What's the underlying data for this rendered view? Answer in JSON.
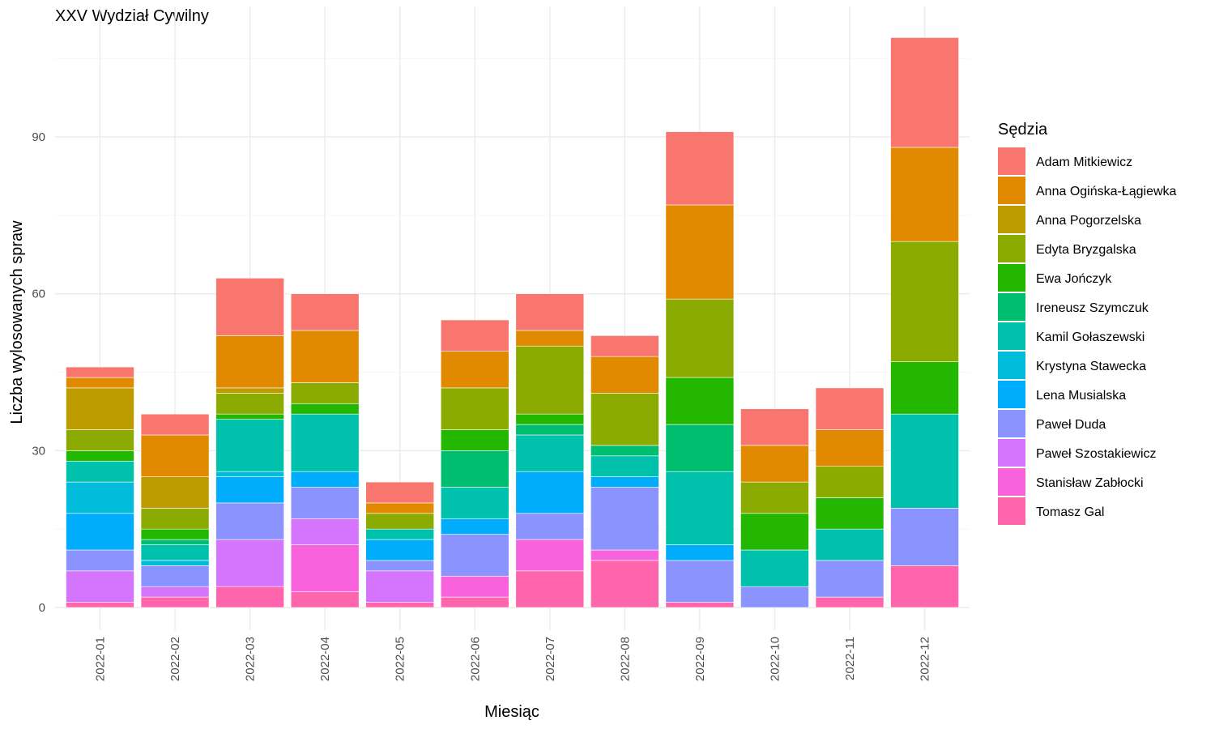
{
  "chart_data": {
    "type": "bar",
    "stacked": true,
    "title": "XXV Wydział Cywilny",
    "xlabel": "Miesiąc",
    "ylabel": "Liczba wylosowanych spraw",
    "ylim": [
      0,
      112
    ],
    "yticks": [
      0,
      30,
      60,
      90
    ],
    "grid": true,
    "legend_title": "Sędzia",
    "legend_position": "right",
    "categories": [
      "2022-01",
      "2022-02",
      "2022-03",
      "2022-04",
      "2022-05",
      "2022-06",
      "2022-07",
      "2022-08",
      "2022-09",
      "2022-10",
      "2022-11",
      "2022-12"
    ],
    "series": [
      {
        "name": "Adam Mitkiewicz",
        "color": "#F8766D",
        "values": [
          2,
          4,
          11,
          7,
          4,
          6,
          7,
          4,
          14,
          7,
          8,
          21
        ]
      },
      {
        "name": "Anna Ogińska-Łągiewka",
        "color": "#E18A00",
        "values": [
          2,
          8,
          10,
          10,
          2,
          7,
          3,
          7,
          18,
          7,
          7,
          18
        ]
      },
      {
        "name": "Anna Pogorzelska",
        "color": "#BE9C00",
        "values": [
          8,
          6,
          1,
          0,
          0,
          0,
          0,
          0,
          0,
          0,
          0,
          0
        ]
      },
      {
        "name": "Edyta Bryzgalska",
        "color": "#8CAB00",
        "values": [
          4,
          4,
          4,
          4,
          3,
          8,
          13,
          10,
          15,
          6,
          6,
          23
        ]
      },
      {
        "name": "Ewa Jończyk",
        "color": "#24B700",
        "values": [
          2,
          2,
          1,
          2,
          0,
          4,
          2,
          0,
          9,
          7,
          6,
          10
        ]
      },
      {
        "name": "Ireneusz Szymczuk",
        "color": "#00BE70",
        "values": [
          0,
          1,
          0,
          0,
          0,
          7,
          2,
          2,
          9,
          0,
          0,
          0
        ]
      },
      {
        "name": "Kamil Gołaszewski",
        "color": "#00C1AB",
        "values": [
          4,
          3,
          10,
          11,
          2,
          6,
          7,
          4,
          14,
          7,
          6,
          18
        ]
      },
      {
        "name": "Krystyna Stawecka",
        "color": "#00BBDA",
        "values": [
          6,
          1,
          1,
          0,
          0,
          0,
          0,
          0,
          0,
          0,
          0,
          0
        ]
      },
      {
        "name": "Lena Musialska",
        "color": "#00ACFC",
        "values": [
          7,
          0,
          5,
          3,
          4,
          3,
          8,
          2,
          3,
          0,
          0,
          0
        ]
      },
      {
        "name": "Paweł Duda",
        "color": "#8B93FF",
        "values": [
          4,
          4,
          7,
          6,
          2,
          8,
          5,
          12,
          8,
          4,
          7,
          11
        ]
      },
      {
        "name": "Paweł Szostakiewicz",
        "color": "#D575FE",
        "values": [
          6,
          2,
          9,
          5,
          6,
          0,
          0,
          0,
          0,
          0,
          0,
          0
        ]
      },
      {
        "name": "Stanisław Zabłocki",
        "color": "#F962DD",
        "values": [
          0,
          0,
          0,
          9,
          0,
          4,
          6,
          2,
          0,
          0,
          0,
          0
        ]
      },
      {
        "name": "Tomasz Gal",
        "color": "#FF65AC",
        "values": [
          1,
          2,
          4,
          3,
          1,
          2,
          7,
          9,
          1,
          0,
          2,
          8
        ]
      }
    ]
  }
}
